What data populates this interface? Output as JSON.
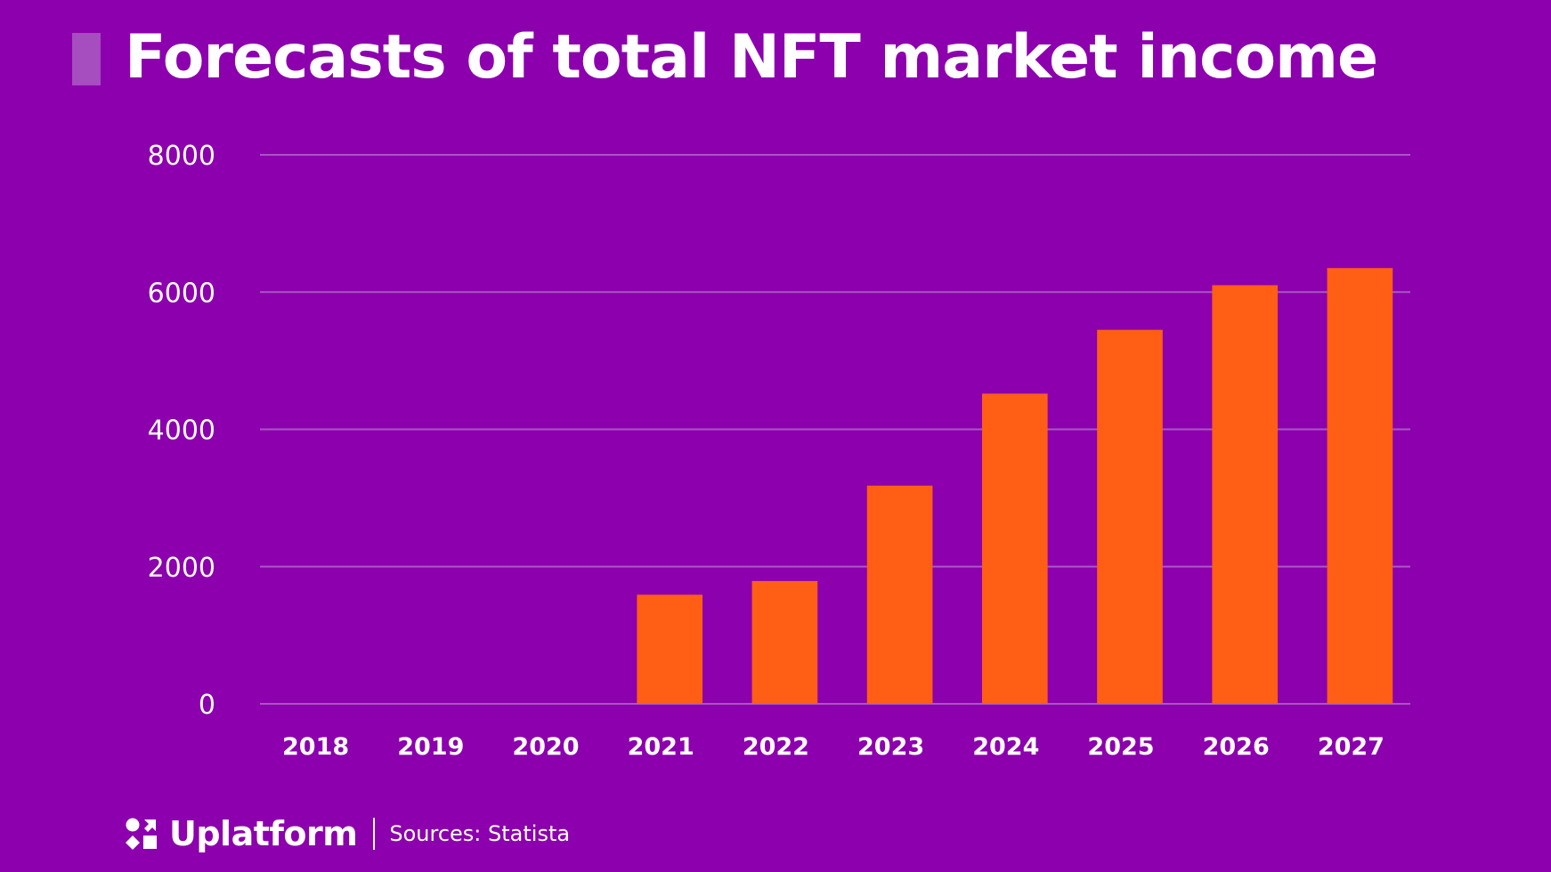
{
  "colors": {
    "background": "#8c00ad",
    "bar": "#ff5e14",
    "grid": "#a857c4",
    "accent_block": "#a64dc0",
    "text": "#ffffff"
  },
  "header": {
    "title": "Forecasts of total NFT market income"
  },
  "footer": {
    "brand": "Uplatform",
    "brand_icon": "uplatform-logo-icon",
    "source": "Sources: Statista"
  },
  "chart_data": {
    "type": "bar",
    "title": "Forecasts of total NFT market income",
    "xlabel": "",
    "ylabel": "",
    "categories": [
      "2018",
      "2019",
      "2020",
      "2021",
      "2022",
      "2023",
      "2024",
      "2025",
      "2026",
      "2027"
    ],
    "values": [
      0,
      0,
      0,
      1590,
      1790,
      3180,
      4520,
      5450,
      6100,
      6350
    ],
    "yticks": [
      0,
      2000,
      4000,
      6000,
      8000
    ],
    "ytick_labels": [
      "0",
      "2000",
      "4000",
      "6000",
      "8000"
    ],
    "ylim": [
      0,
      8000
    ],
    "grid": true,
    "legend": "none",
    "source": "Statista"
  }
}
